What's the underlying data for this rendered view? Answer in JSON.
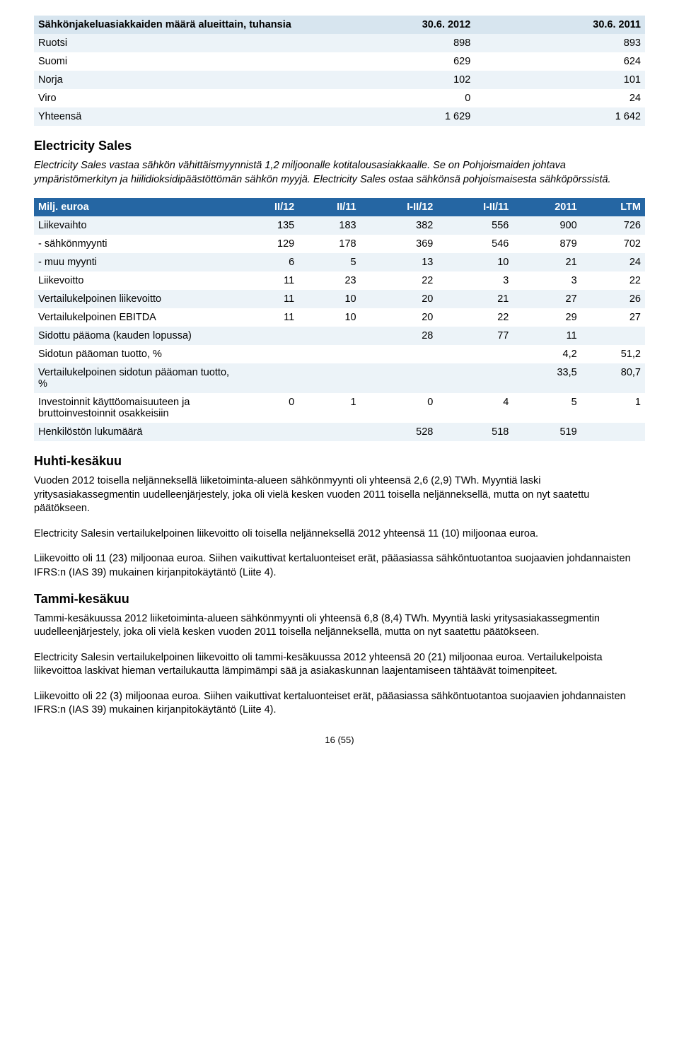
{
  "table1": {
    "header": [
      "Sähkönjakeluasiakkaiden määrä alueittain, tuhansia",
      "30.6. 2012",
      "30.6. 2011"
    ],
    "rows": [
      {
        "cells": [
          "Ruotsi",
          "898",
          "893"
        ],
        "light": true
      },
      {
        "cells": [
          "Suomi",
          "629",
          "624"
        ],
        "light": false
      },
      {
        "cells": [
          "Norja",
          "102",
          "101"
        ],
        "light": true
      },
      {
        "cells": [
          "Viro",
          "0",
          "24"
        ],
        "light": false
      },
      {
        "cells": [
          "Yhteensä",
          "1 629",
          "1 642"
        ],
        "light": true
      }
    ]
  },
  "seg_title": "Electricity Sales",
  "seg_intro": "Electricity Sales vastaa sähkön vähittäismyynnistä 1,2 miljoonalle kotitalousasiakkaalle. Se on Pohjoismaiden johtava ympäristömerkityn ja hiilidioksidipäästöttömän sähkön myyjä. Electricity Sales ostaa sähkönsä pohjoismaisesta sähköpörssistä.",
  "table2": {
    "header": [
      "Milj. euroa",
      "II/12",
      "II/11",
      "I-II/12",
      "I-II/11",
      "2011",
      "LTM"
    ],
    "rows": [
      {
        "cells": [
          "Liikevaihto",
          "135",
          "183",
          "382",
          "556",
          "900",
          "726"
        ],
        "light": true
      },
      {
        "cells": [
          "- sähkönmyynti",
          "129",
          "178",
          "369",
          "546",
          "879",
          "702"
        ],
        "light": false
      },
      {
        "cells": [
          "- muu myynti",
          "6",
          "5",
          "13",
          "10",
          "21",
          "24"
        ],
        "light": true
      },
      {
        "cells": [
          "Liikevoitto",
          "11",
          "23",
          "22",
          "3",
          "3",
          "22"
        ],
        "light": false
      },
      {
        "cells": [
          "Vertailukelpoinen liikevoitto",
          "11",
          "10",
          "20",
          "21",
          "27",
          "26"
        ],
        "light": true
      },
      {
        "cells": [
          "Vertailukelpoinen EBITDA",
          "11",
          "10",
          "20",
          "22",
          "29",
          "27"
        ],
        "light": false
      },
      {
        "cells": [
          "Sidottu pääoma (kauden lopussa)",
          "",
          "",
          "28",
          "77",
          "11",
          ""
        ],
        "light": true
      },
      {
        "cells": [
          "Sidotun pääoman tuotto, %",
          "",
          "",
          "",
          "",
          "4,2",
          "51,2"
        ],
        "light": false
      },
      {
        "cells": [
          "Vertailukelpoinen sidotun pääoman tuotto, %",
          "",
          "",
          "",
          "",
          "33,5",
          "80,7"
        ],
        "light": true
      },
      {
        "cells": [
          "Investoinnit käyttöomaisuuteen ja bruttoinvestoinnit osakkeisiin",
          "0",
          "1",
          "0",
          "4",
          "5",
          "1"
        ],
        "light": false
      },
      {
        "cells": [
          "Henkilöstön lukumäärä",
          "",
          "",
          "528",
          "518",
          "519",
          ""
        ],
        "light": true
      }
    ]
  },
  "h_huhti": "Huhti-kesäkuu",
  "p1": "Vuoden 2012 toisella neljänneksellä liiketoiminta-alueen sähkönmyynti oli yhteensä 2,6 (2,9) TWh. Myyntiä laski yritysasiakassegmentin uudelleenjärjestely, joka oli vielä kesken vuoden 2011 toisella neljänneksellä, mutta on nyt saatettu päätökseen.",
  "p2": "Electricity Salesin vertailukelpoinen liikevoitto oli toisella neljänneksellä 2012 yhteensä 11 (10) miljoonaa euroa.",
  "p3": "Liikevoitto oli 11 (23) miljoonaa euroa. Siihen vaikuttivat kertaluonteiset erät, pääasiassa sähköntuotantoa suojaavien johdannaisten IFRS:n (IAS 39) mukainen kirjanpitokäytäntö (Liite 4).",
  "h_tammi": "Tammi-kesäkuu",
  "p4": "Tammi-kesäkuussa 2012 liiketoiminta-alueen sähkönmyynti oli yhteensä 6,8 (8,4) TWh. Myyntiä laski yritysasiakassegmentin uudelleenjärjestely, joka oli vielä kesken vuoden 2011 toisella neljänneksellä, mutta on nyt saatettu päätökseen.",
  "p5": "Electricity Salesin vertailukelpoinen liikevoitto oli tammi-kesäkuussa 2012 yhteensä 20 (21) miljoonaa euroa. Vertailukelpoista liikevoittoa laskivat hieman vertailukautta lämpimämpi sää ja asiakaskunnan laajentamiseen tähtäävät toimenpiteet.",
  "p6": "Liikevoitto oli 22 (3) miljoonaa euroa. Siihen vaikuttivat kertaluonteiset erät, pääasiassa sähköntuotantoa suojaavien johdannaisten IFRS:n (IAS 39) mukainen kirjanpitokäytäntö (Liite 4).",
  "footer": "16 (55)"
}
